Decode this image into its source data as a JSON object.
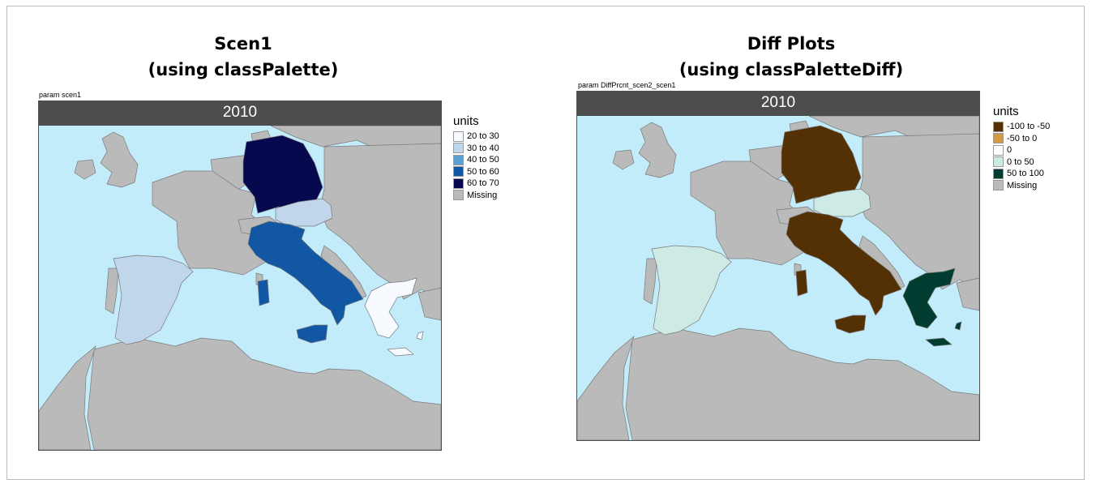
{
  "left_panel": {
    "heading_line1": "Scen1",
    "heading_line2": "(using classPalette)",
    "param_label": "param scen1",
    "strip_label": "2010",
    "legend": {
      "title": "units",
      "items": [
        {
          "label": "20 to 30",
          "color": "#f7fbff"
        },
        {
          "label": "30 to 40",
          "color": "#bfd6eb"
        },
        {
          "label": "40 to 50",
          "color": "#5b9fcf"
        },
        {
          "label": "50 to 60",
          "color": "#1257a3"
        },
        {
          "label": "60 to 70",
          "color": "#08084f"
        },
        {
          "label": "Missing",
          "color": "#bababa"
        }
      ]
    },
    "map_data": {
      "Germany": "60 to 70",
      "Austria": "30 to 40",
      "Italy": "50 to 60",
      "Spain": "30 to 40",
      "Greece": "20 to 30"
    }
  },
  "right_panel": {
    "heading_line1": "Diff Plots",
    "heading_line2": "(using classPaletteDiff)",
    "param_label": "param DiffPrcnt_scen2_scen1",
    "strip_label": "2010",
    "legend": {
      "title": "units",
      "items": [
        {
          "label": "-100 to -50",
          "color": "#543005"
        },
        {
          "label": "-50 to 0",
          "color": "#d09a4a"
        },
        {
          "label": "0",
          "color": "#ffffff"
        },
        {
          "label": "0 to 50",
          "color": "#cdeae5"
        },
        {
          "label": "50 to 100",
          "color": "#003d30"
        },
        {
          "label": "Missing",
          "color": "#bababa"
        }
      ]
    },
    "map_data": {
      "Germany": "-100 to -50",
      "Austria": "0 to 50",
      "Italy": "-100 to -50",
      "Spain": "0 to 50",
      "Greece": "50 to 100"
    }
  },
  "colors": {
    "sea": "#c3ecfb",
    "land": "#bababa",
    "border": "#7a7a7a",
    "strip": "#4d4d4d"
  }
}
